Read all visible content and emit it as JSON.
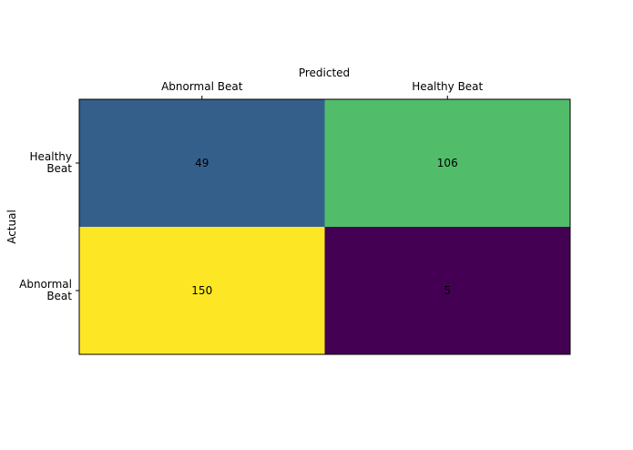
{
  "chart_data": {
    "type": "heatmap",
    "title": "",
    "xlabel": "Predicted",
    "ylabel": "Actual",
    "x_categories": [
      "Abnormal Beat",
      "Healthy Beat"
    ],
    "y_categories": [
      {
        "line1": "Healthy",
        "line2": "Beat"
      },
      {
        "line1": "Abnormal",
        "line2": "Beat"
      }
    ],
    "values": [
      [
        49,
        106
      ],
      [
        150,
        5
      ]
    ],
    "value_range": [
      5,
      150
    ],
    "colormap": "viridis",
    "x_axis_position": "top",
    "grid": false,
    "legend": "none"
  }
}
